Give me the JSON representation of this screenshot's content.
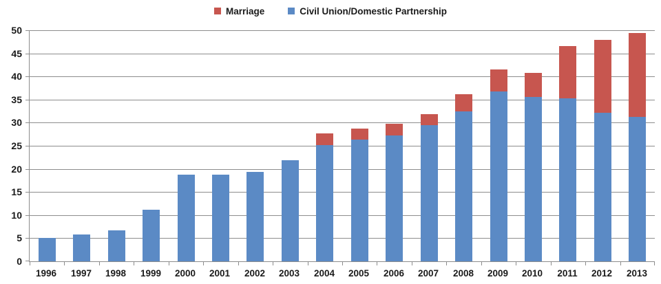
{
  "legend": {
    "marriage_label": "Marriage",
    "civil_union_label": "Civil Union/Domestic Partnership"
  },
  "colors": {
    "marriage": "#c7564f",
    "civil_union": "#5b8ac5",
    "gridline": "#8c8c8c",
    "text": "#1a1a1a"
  },
  "chart_data": {
    "type": "bar",
    "stacked": true,
    "categories": [
      "1996",
      "1997",
      "1998",
      "1999",
      "2000",
      "2001",
      "2002",
      "2003",
      "2004",
      "2005",
      "2006",
      "2007",
      "2008",
      "2009",
      "2010",
      "2011",
      "2012",
      "2013"
    ],
    "series": [
      {
        "name": "Marriage",
        "color": "#c7564f",
        "stack_position": "top",
        "values": [
          0,
          0,
          0,
          0,
          0,
          0,
          0,
          0,
          2.5,
          2.4,
          2.5,
          2.4,
          3.7,
          4.8,
          5.2,
          11.3,
          15.8,
          18.2
        ]
      },
      {
        "name": "Civil Union/Domestic Partnership",
        "color": "#5b8ac5",
        "stack_position": "bottom",
        "values": [
          5.1,
          5.8,
          6.7,
          11.1,
          18.7,
          18.7,
          19.3,
          21.9,
          25.2,
          26.4,
          27.3,
          29.5,
          32.4,
          36.7,
          35.6,
          35.2,
          32.1,
          31.3
        ]
      }
    ],
    "ylim": [
      0,
      50
    ],
    "yticks": [
      0,
      5,
      10,
      15,
      20,
      25,
      30,
      35,
      40,
      45,
      50
    ],
    "grid": true,
    "legend_position": "top-center"
  }
}
